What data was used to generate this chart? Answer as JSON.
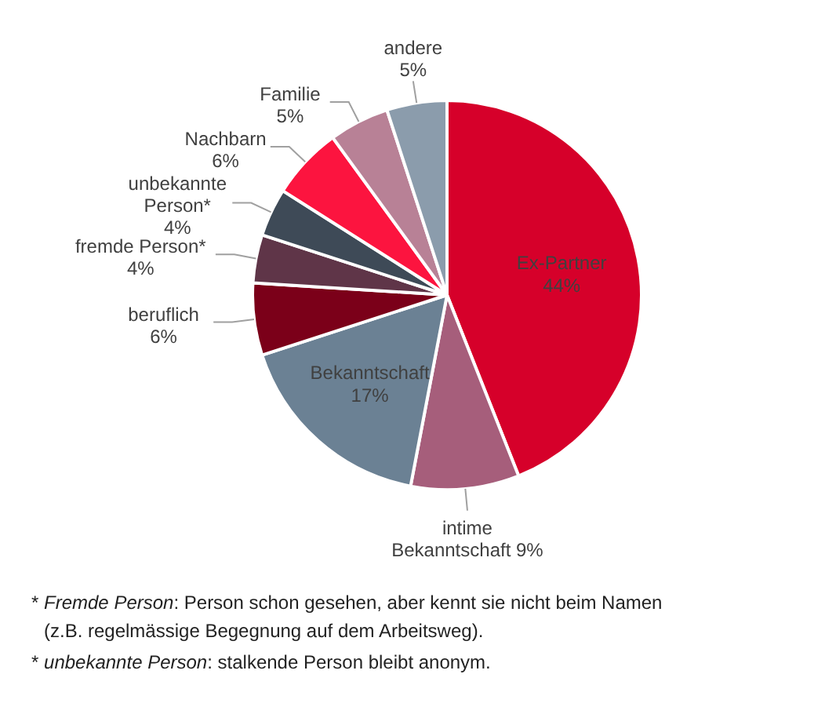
{
  "chart_data": {
    "type": "pie",
    "categories": [
      "Ex-Partner",
      "intime Bekanntschaft",
      "Bekanntschaft",
      "beruflich",
      "fremde Person*",
      "unbekannte Person*",
      "Nachbarn",
      "Familie",
      "andere"
    ],
    "values": [
      44,
      9,
      17,
      6,
      4,
      4,
      6,
      5,
      5
    ],
    "colors": [
      "#d6002a",
      "#a65e7b",
      "#6b8194",
      "#7b0019",
      "#5f3548",
      "#3e4a57",
      "#fc143f",
      "#b88196",
      "#8b9cac"
    ],
    "value_labels": [
      "44%",
      "9%",
      "17%",
      "6%",
      "4%",
      "4%",
      "6%",
      "5%",
      "5%"
    ],
    "annotations": [
      "* Fremde Person: Person schon gesehen, aber kennt sie nicht beim Namen (z.B. regelmässige Begegnung auf dem Arbeitsweg).",
      "* unbekannte Person: stalkende Person bleibt anonym."
    ]
  }
}
